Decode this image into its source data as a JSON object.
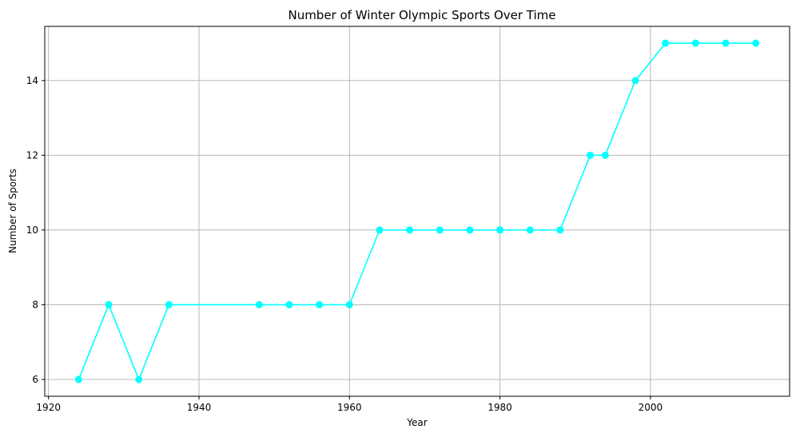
{
  "chart_data": {
    "type": "line",
    "title": "Number of Winter Olympic Sports Over Time",
    "xlabel": "Year",
    "ylabel": "Number of Sports",
    "xlim": [
      1919.5,
      2018.5
    ],
    "ylim": [
      5.55,
      15.45
    ],
    "xticks": [
      1920,
      1940,
      1960,
      1980,
      2000
    ],
    "yticks": [
      6,
      8,
      10,
      12,
      14
    ],
    "grid": true,
    "color": "#00ffff",
    "marker": "circle",
    "x": [
      1924,
      1928,
      1932,
      1936,
      1948,
      1952,
      1956,
      1960,
      1964,
      1968,
      1972,
      1976,
      1980,
      1984,
      1988,
      1992,
      1994,
      1998,
      2002,
      2006,
      2010,
      2014
    ],
    "y": [
      6,
      8,
      6,
      8,
      8,
      8,
      8,
      8,
      10,
      10,
      10,
      10,
      10,
      10,
      10,
      12,
      12,
      14,
      15,
      15,
      15,
      15
    ]
  }
}
